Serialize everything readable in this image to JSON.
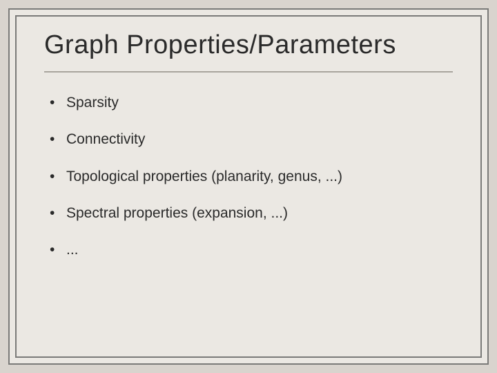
{
  "slide": {
    "title": "Graph Properties/Parameters",
    "bullets": [
      "Sparsity",
      "Connectivity",
      "Topological properties (planarity, genus, ...)",
      "Spectral properties (expansion, ...)",
      "..."
    ]
  },
  "style": {
    "background_color": "#d9d4ce",
    "frame_color": "#ebe8e3",
    "border_color": "#7a7a78",
    "divider_color": "#a8a49d",
    "text_color": "#2a2a2a",
    "title_fontsize": 38,
    "bullet_fontsize": 21,
    "font_family": "Arial"
  }
}
